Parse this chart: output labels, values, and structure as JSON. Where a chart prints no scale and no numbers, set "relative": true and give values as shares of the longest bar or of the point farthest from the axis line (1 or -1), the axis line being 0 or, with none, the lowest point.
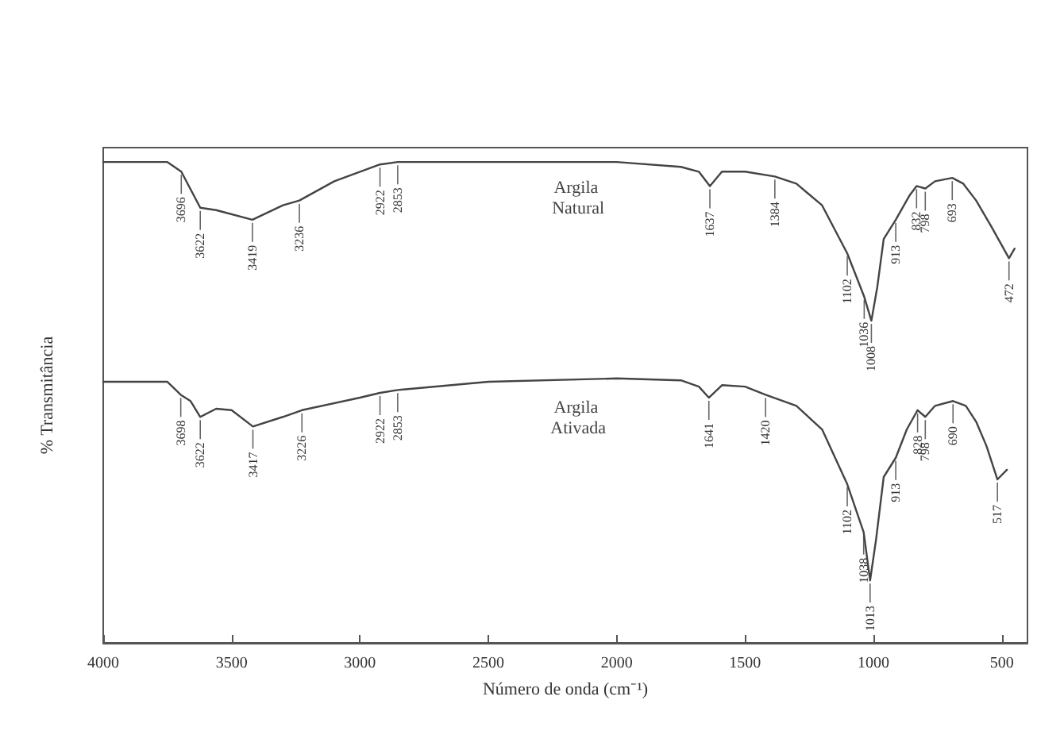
{
  "chart_data": {
    "type": "line",
    "relative": true,
    "xlabel": "Número de onda (cm⁻¹)",
    "ylabel": "% Transmitância",
    "xlim": [
      4000,
      400
    ],
    "xticks": [
      4000,
      3500,
      3000,
      2500,
      2000,
      1500,
      1000,
      500
    ],
    "grid": false,
    "legend": false,
    "marker": "none",
    "line_style": "solid",
    "series": [
      {
        "name": "Argila Natural",
        "color": "#444444",
        "x": [
          4000,
          3750,
          3696,
          3622,
          3560,
          3419,
          3300,
          3236,
          3100,
          2922,
          2853,
          2500,
          2000,
          1750,
          1680,
          1637,
          1590,
          1500,
          1384,
          1300,
          1200,
          1102,
          1036,
          1008,
          985,
          960,
          913,
          860,
          832,
          798,
          760,
          693,
          650,
          600,
          540,
          472,
          450
        ],
        "values": [
          1.0,
          1.0,
          0.98,
          0.905,
          0.9,
          0.88,
          0.91,
          0.92,
          0.96,
          0.995,
          1.0,
          1.0,
          1.0,
          0.99,
          0.98,
          0.95,
          0.98,
          0.98,
          0.97,
          0.955,
          0.91,
          0.81,
          0.72,
          0.67,
          0.74,
          0.84,
          0.88,
          0.93,
          0.95,
          0.945,
          0.96,
          0.967,
          0.955,
          0.92,
          0.865,
          0.8,
          0.82
        ]
      },
      {
        "name": "Argila Ativada",
        "color": "#444444",
        "x": [
          4000,
          3750,
          3698,
          3660,
          3622,
          3560,
          3500,
          3417,
          3300,
          3226,
          3000,
          2922,
          2853,
          2500,
          2000,
          1750,
          1680,
          1641,
          1590,
          1500,
          1420,
          1300,
          1200,
          1102,
          1038,
          1013,
          990,
          960,
          913,
          870,
          828,
          798,
          760,
          690,
          640,
          600,
          560,
          517,
          480
        ],
        "values": [
          0.543,
          0.543,
          0.516,
          0.503,
          0.47,
          0.487,
          0.484,
          0.45,
          0.47,
          0.484,
          0.51,
          0.52,
          0.526,
          0.543,
          0.55,
          0.546,
          0.533,
          0.51,
          0.536,
          0.533,
          0.516,
          0.493,
          0.444,
          0.33,
          0.23,
          0.13,
          0.214,
          0.345,
          0.385,
          0.444,
          0.484,
          0.47,
          0.493,
          0.503,
          0.493,
          0.46,
          0.41,
          0.34,
          0.36
        ]
      }
    ],
    "annotations": [
      {
        "text": "3696",
        "x": 3696,
        "y": 0.98
      },
      {
        "text": "3622",
        "x": 3622,
        "y": 0.905
      },
      {
        "text": "3419",
        "x": 3419,
        "y": 0.88
      },
      {
        "text": "3236",
        "x": 3236,
        "y": 0.92
      },
      {
        "text": "2922",
        "x": 2922,
        "y": 0.995
      },
      {
        "text": "2853",
        "x": 2853,
        "y": 1.0
      },
      {
        "text": "1637",
        "x": 1637,
        "y": 0.95
      },
      {
        "text": "1384",
        "x": 1384,
        "y": 0.97
      },
      {
        "text": "1102",
        "x": 1102,
        "y": 0.81
      },
      {
        "text": "1036",
        "x": 1036,
        "y": 0.72
      },
      {
        "text": "1008",
        "x": 1008,
        "y": 0.67
      },
      {
        "text": "913",
        "x": 913,
        "y": 0.88
      },
      {
        "text": "832",
        "x": 832,
        "y": 0.95
      },
      {
        "text": "798",
        "x": 798,
        "y": 0.945
      },
      {
        "text": "693",
        "x": 693,
        "y": 0.967
      },
      {
        "text": "472",
        "x": 472,
        "y": 0.8
      },
      {
        "text": "3698",
        "x": 3698,
        "y": 0.516
      },
      {
        "text": "3622",
        "x": 3622,
        "y": 0.47
      },
      {
        "text": "3417",
        "x": 3417,
        "y": 0.45
      },
      {
        "text": "3226",
        "x": 3226,
        "y": 0.484
      },
      {
        "text": "2922",
        "x": 2922,
        "y": 0.52
      },
      {
        "text": "2853",
        "x": 2853,
        "y": 0.526
      },
      {
        "text": "1641",
        "x": 1641,
        "y": 0.51
      },
      {
        "text": "1420",
        "x": 1420,
        "y": 0.516
      },
      {
        "text": "1102",
        "x": 1102,
        "y": 0.33
      },
      {
        "text": "1038",
        "x": 1038,
        "y": 0.23
      },
      {
        "text": "1013",
        "x": 1013,
        "y": 0.13
      },
      {
        "text": "913",
        "x": 913,
        "y": 0.385
      },
      {
        "text": "828",
        "x": 828,
        "y": 0.484
      },
      {
        "text": "798",
        "x": 798,
        "y": 0.47
      },
      {
        "text": "690",
        "x": 690,
        "y": 0.503
      },
      {
        "text": "517",
        "x": 517,
        "y": 0.34
      }
    ]
  }
}
